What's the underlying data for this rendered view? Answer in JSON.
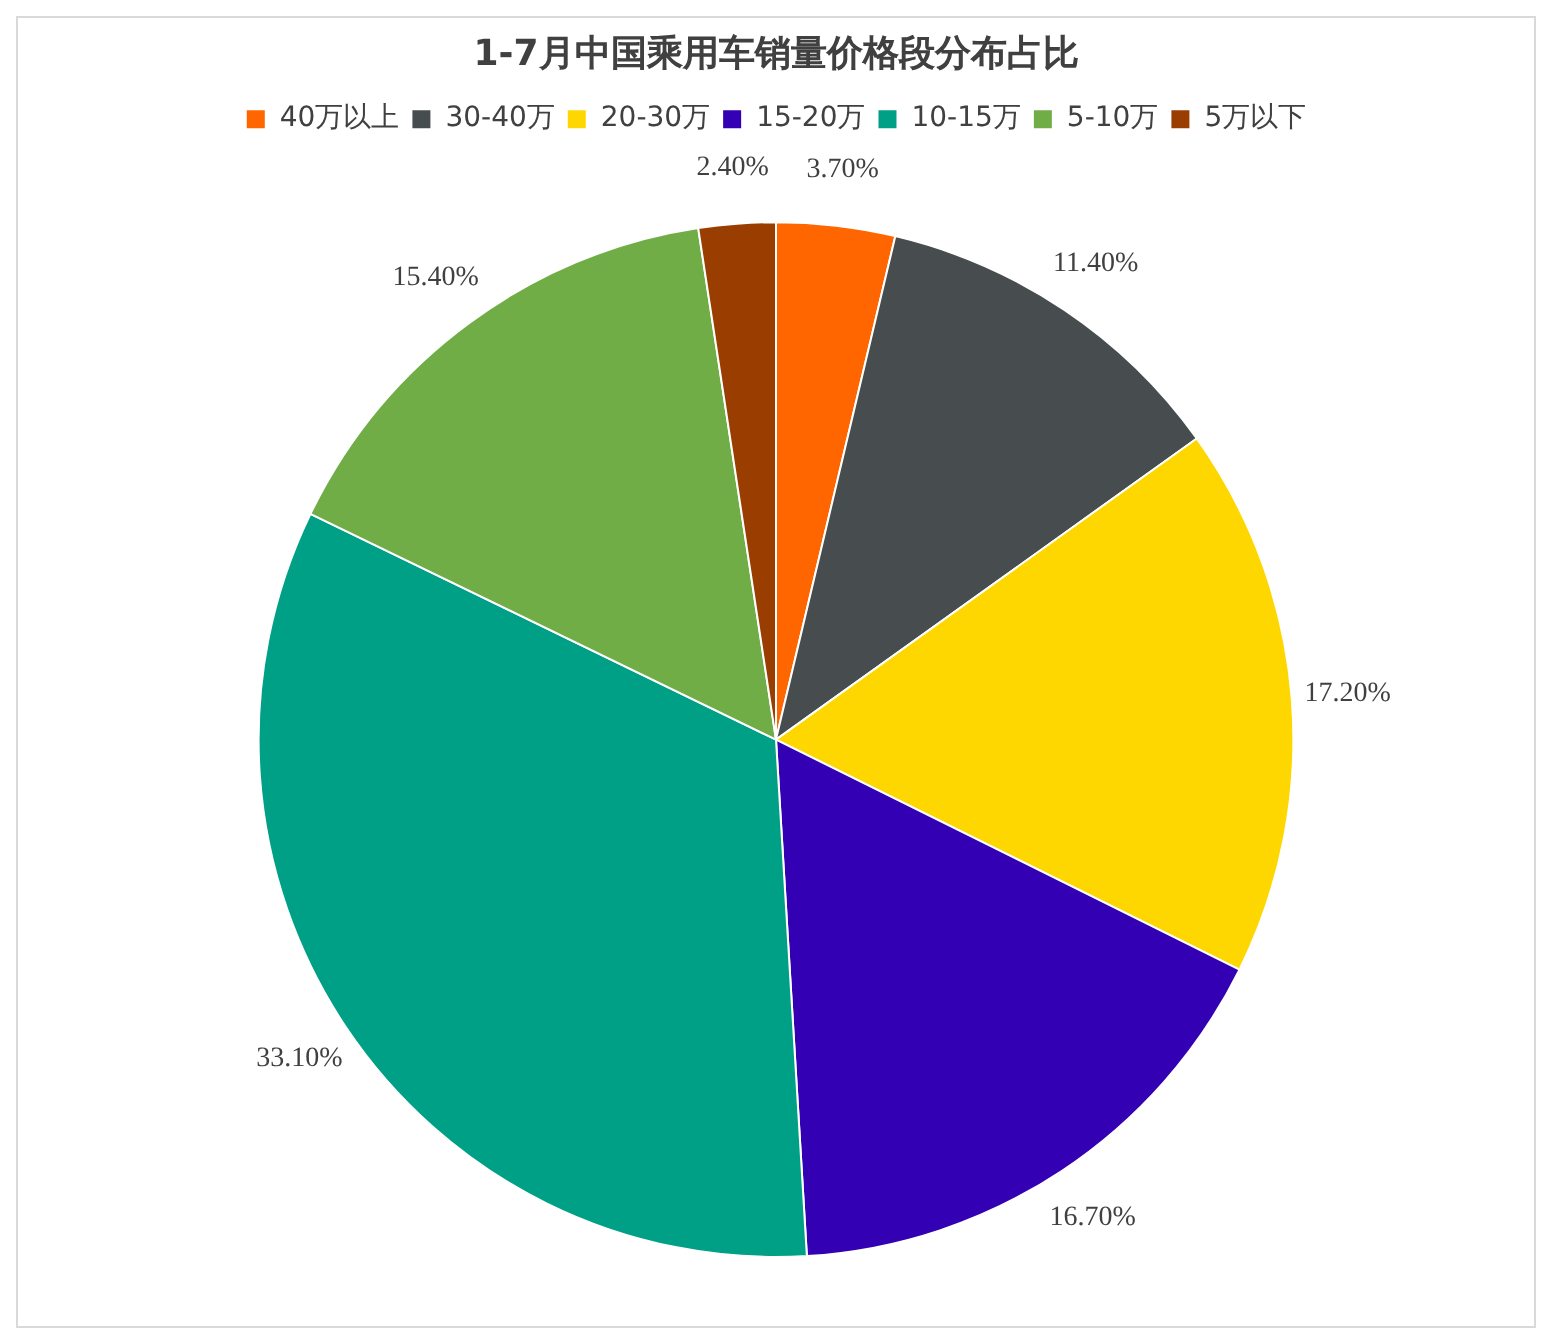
{
  "chart_data": {
    "type": "pie",
    "title": "1-7月中国乘用车销量价格段分布占比",
    "categories": [
      "40万以上",
      "30-40万",
      "20-30万",
      "15-20万",
      "10-15万",
      "5-10万",
      "5万以下"
    ],
    "values": [
      3.7,
      11.4,
      17.2,
      16.7,
      33.1,
      15.4,
      2.4
    ],
    "value_labels": [
      "3.70%",
      "11.40%",
      "17.20%",
      "16.70%",
      "33.10%",
      "15.40%",
      "2.40%"
    ],
    "colors": [
      "#ff6600",
      "#474c4f",
      "#ffd700",
      "#3300b3",
      "#00a086",
      "#70ad47",
      "#993d00"
    ],
    "legend": "top"
  }
}
